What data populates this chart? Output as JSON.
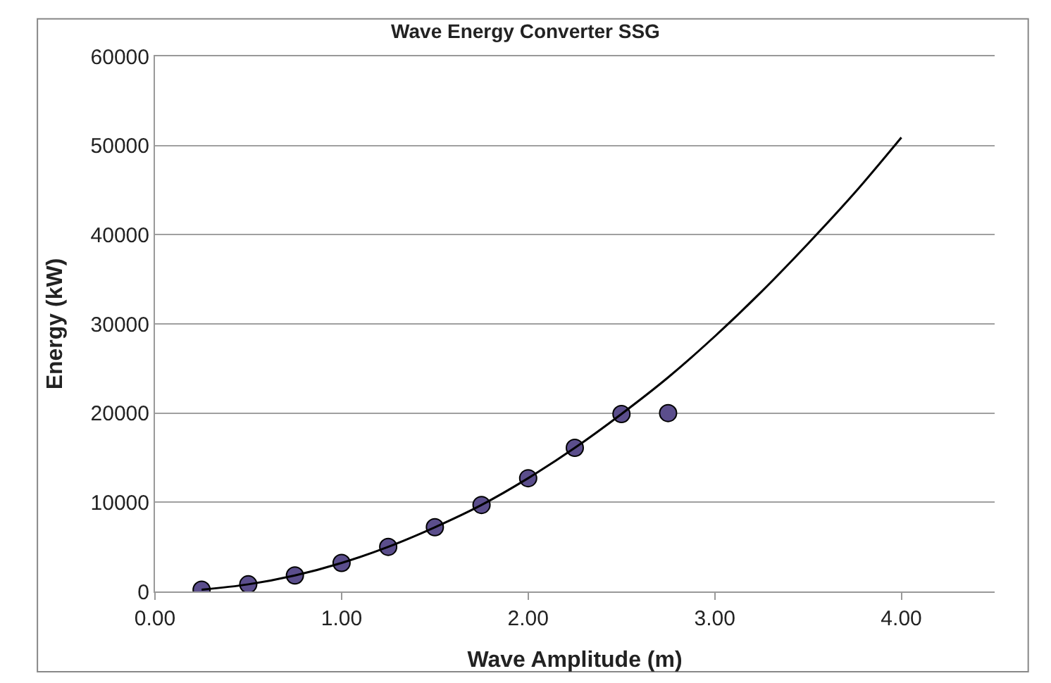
{
  "chart_data": {
    "type": "scatter",
    "title": "Wave Energy Converter SSG",
    "xlabel": "Wave Amplitude (m)",
    "ylabel": "Energy (kW)",
    "xlim": [
      0,
      4.5
    ],
    "xticks": [
      {
        "value": 0,
        "label": "0.00"
      },
      {
        "value": 1,
        "label": "1.00"
      },
      {
        "value": 2,
        "label": "2.00"
      },
      {
        "value": 3,
        "label": "3.00"
      },
      {
        "value": 4,
        "label": "4.00"
      }
    ],
    "ylim": [
      0,
      60000
    ],
    "yticks": [
      0,
      10000,
      20000,
      30000,
      40000,
      50000,
      60000
    ],
    "grid": "y",
    "legend": false,
    "marker": "circle",
    "series": [
      {
        "color": "#5b4e8c",
        "x": [
          0.25,
          0.5,
          0.75,
          1.0,
          1.25,
          1.5,
          1.75,
          2.0,
          2.25,
          2.5,
          2.75
        ],
        "values": [
          200,
          800,
          1800,
          3200,
          5000,
          7200,
          9700,
          12700,
          16100,
          19900,
          20000
        ]
      },
      {
        "type": "line",
        "color": "#000000",
        "marker": "none",
        "line_style": "solid",
        "x": [
          0.25,
          0.5,
          0.75,
          1.0,
          1.25,
          1.5,
          1.75,
          2.0,
          2.25,
          2.5,
          2.75,
          3.0,
          3.25,
          3.5,
          3.75,
          4.0
        ],
        "values": [
          200,
          800,
          1800,
          3200,
          5000,
          7200,
          9700,
          12700,
          16100,
          19900,
          24000,
          28600,
          33600,
          39000,
          44700,
          50900
        ]
      }
    ]
  }
}
